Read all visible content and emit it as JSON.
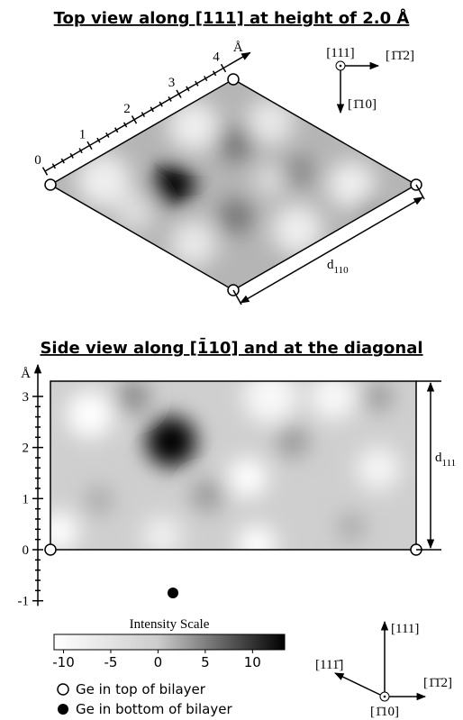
{
  "top_view": {
    "title": "Top view along [111] at height of 2.0 Å",
    "ruler": {
      "unit": "Å",
      "lim": [
        0,
        4.3
      ],
      "ticks": [
        0,
        1,
        2,
        3,
        4
      ]
    },
    "axes": {
      "out": "[111]",
      "right": "[1̄1̄2]",
      "down": "[1̄10]"
    },
    "distance": {
      "symbol": "d",
      "subscript": "110"
    }
  },
  "side_view": {
    "title": "Side view along [1̄10] and at the diagonal",
    "axis": {
      "unit": "Å",
      "lim": [
        -1.1,
        3.3
      ],
      "ticks": [
        -1,
        0,
        1,
        2,
        3
      ]
    },
    "distance": {
      "symbol": "d",
      "subscript": "111"
    }
  },
  "intensity_scale": {
    "title": "Intensity Scale",
    "lim": [
      -11,
      13.4
    ],
    "ticks": [
      -10,
      -5,
      0,
      5,
      10
    ]
  },
  "legend": [
    "Ge in top of bilayer",
    "Ge in bottom of bilayer"
  ],
  "axes_diagram": {
    "up": "[111]",
    "left": "[111̄]",
    "right": "[1̄1̄2]",
    "out": "[1̄10]"
  }
}
